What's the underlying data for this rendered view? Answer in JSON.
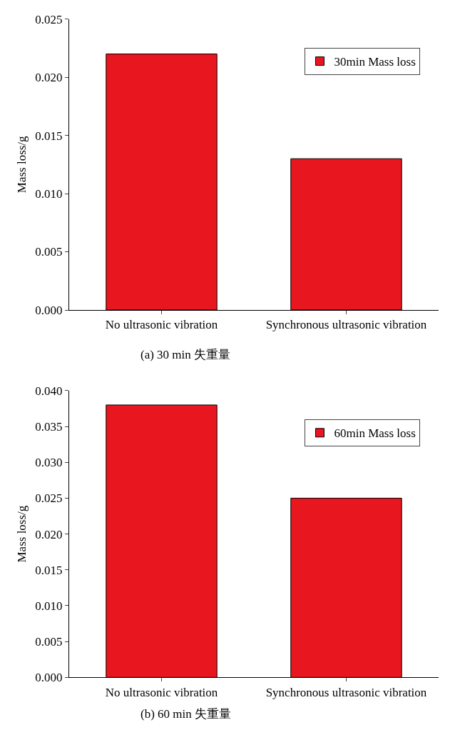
{
  "chart_data": [
    {
      "type": "bar",
      "categories": [
        "No ultrasonic vibration",
        "Synchronous ultrasonic vibration"
      ],
      "ylabel": "Mass loss/g",
      "series": [
        {
          "name": "30min Mass loss",
          "color": "#e8161e",
          "values": [
            0.022,
            0.013
          ]
        }
      ],
      "ylim": [
        0,
        0.025
      ],
      "yticks": [
        {
          "value": 0,
          "label": "0.000"
        },
        {
          "value": 0.005,
          "label": "0.005"
        },
        {
          "value": 0.01,
          "label": "0.010"
        },
        {
          "value": 0.015,
          "label": "0.015"
        },
        {
          "value": 0.02,
          "label": "0.020"
        },
        {
          "value": 0.025,
          "label": "0.025"
        }
      ],
      "legend": "top right",
      "annotations": [
        "(a) 30 min 失重量"
      ]
    },
    {
      "type": "bar",
      "categories": [
        "No ultrasonic vibration",
        "Synchronous ultrasonic vibration"
      ],
      "ylabel": "Mass loss/g",
      "series": [
        {
          "name": "60min Mass loss",
          "color": "#e8161e",
          "values": [
            0.038,
            0.025
          ]
        }
      ],
      "ylim": [
        0,
        0.04
      ],
      "yticks": [
        {
          "value": 0,
          "label": "0.000"
        },
        {
          "value": 0.005,
          "label": "0.005"
        },
        {
          "value": 0.01,
          "label": "0.010"
        },
        {
          "value": 0.015,
          "label": "0.015"
        },
        {
          "value": 0.02,
          "label": "0.020"
        },
        {
          "value": 0.025,
          "label": "0.025"
        },
        {
          "value": 0.03,
          "label": "0.030"
        },
        {
          "value": 0.035,
          "label": "0.035"
        },
        {
          "value": 0.04,
          "label": "0.040"
        }
      ],
      "legend": "top right",
      "annotations": [
        "(b) 60 min 失重量"
      ]
    }
  ]
}
